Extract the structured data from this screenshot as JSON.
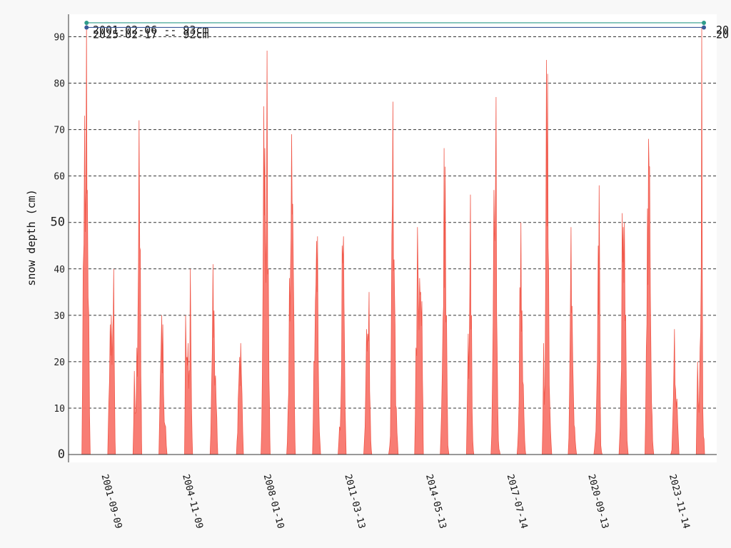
{
  "chart_data": {
    "type": "area",
    "title": "",
    "xlabel": "",
    "ylabel": "snow depth (cm)",
    "x_range": [
      "2000-11-14",
      "2025-03-30"
    ],
    "ylim": [
      0,
      95
    ],
    "y_ticks": [
      {
        "value": 0,
        "label": "0",
        "big": true
      },
      {
        "value": 10,
        "label": "10"
      },
      {
        "value": 20,
        "label": "20"
      },
      {
        "value": 30,
        "label": "30"
      },
      {
        "value": 40,
        "label": "40"
      },
      {
        "value": 50,
        "label": "50",
        "big": true
      },
      {
        "value": 60,
        "label": "60"
      },
      {
        "value": 70,
        "label": "70"
      },
      {
        "value": 80,
        "label": "80"
      },
      {
        "value": 90,
        "label": "90"
      }
    ],
    "x_ticks": [
      "2001-09-09",
      "2004-11-09",
      "2008-01-10",
      "2011-03-13",
      "2014-05-13",
      "2017-07-14",
      "2020-09-13",
      "2023-11-14"
    ],
    "grid": true,
    "series": [
      {
        "color": "#f0584a",
        "fill": "#f8766d",
        "seasons": [
          {
            "start": "2000-12-01",
            "end": "2001-03-30",
            "peaks": [
              [
                "2000-12-20",
                40
              ],
              [
                "2001-01-10",
                73
              ],
              [
                "2001-02-06",
                93
              ],
              [
                "2001-02-18",
                57
              ],
              [
                "2001-03-10",
                30
              ]
            ]
          },
          {
            "start": "2001-12-05",
            "end": "2002-03-25",
            "peaks": [
              [
                "2001-12-20",
                11
              ],
              [
                "2002-01-10",
                28
              ],
              [
                "2002-01-25",
                30
              ],
              [
                "2002-02-15",
                27
              ],
              [
                "2002-03-01",
                40
              ],
              [
                "2002-03-15",
                10
              ]
            ]
          },
          {
            "start": "2002-12-01",
            "end": "2003-04-05",
            "peaks": [
              [
                "2002-12-20",
                18
              ],
              [
                "2003-01-10",
                9
              ],
              [
                "2003-01-25",
                23
              ],
              [
                "2003-02-10",
                31
              ],
              [
                "2003-02-25",
                72
              ],
              [
                "2003-03-15",
                44
              ],
              [
                "2003-03-30",
                10
              ]
            ]
          },
          {
            "start": "2003-12-05",
            "end": "2004-03-30",
            "peaks": [
              [
                "2003-12-25",
                16
              ],
              [
                "2004-01-15",
                30
              ],
              [
                "2004-01-30",
                28
              ],
              [
                "2004-02-20",
                7
              ],
              [
                "2004-03-10",
                6
              ]
            ]
          },
          {
            "start": "2004-12-05",
            "end": "2005-03-30",
            "peaks": [
              [
                "2004-12-20",
                30
              ],
              [
                "2005-01-10",
                21
              ],
              [
                "2005-01-25",
                24
              ],
              [
                "2005-02-10",
                18
              ],
              [
                "2005-02-25",
                40
              ],
              [
                "2005-03-15",
                10
              ]
            ]
          },
          {
            "start": "2005-12-05",
            "end": "2006-03-25",
            "peaks": [
              [
                "2005-12-25",
                14
              ],
              [
                "2006-01-15",
                41
              ],
              [
                "2006-01-30",
                31
              ],
              [
                "2006-02-20",
                17
              ],
              [
                "2006-03-10",
                8
              ]
            ]
          },
          {
            "start": "2006-12-15",
            "end": "2007-03-25",
            "peaks": [
              [
                "2007-01-10",
                12
              ],
              [
                "2007-01-30",
                21
              ],
              [
                "2007-02-15",
                24
              ],
              [
                "2007-03-05",
                13
              ]
            ]
          },
          {
            "start": "2007-12-01",
            "end": "2008-04-10",
            "peaks": [
              [
                "2007-12-20",
                17
              ],
              [
                "2008-01-10",
                75
              ],
              [
                "2008-01-25",
                66
              ],
              [
                "2008-02-10",
                37
              ],
              [
                "2008-02-25",
                87
              ],
              [
                "2008-03-15",
                40
              ],
              [
                "2008-04-01",
                10
              ]
            ]
          },
          {
            "start": "2008-12-01",
            "end": "2009-04-05",
            "peaks": [
              [
                "2008-12-20",
                9
              ],
              [
                "2009-01-10",
                38
              ],
              [
                "2009-01-25",
                40
              ],
              [
                "2009-02-10",
                69
              ],
              [
                "2009-02-25",
                54
              ],
              [
                "2009-03-15",
                28
              ],
              [
                "2009-03-30",
                3
              ]
            ]
          },
          {
            "start": "2009-12-05",
            "end": "2010-03-30",
            "peaks": [
              [
                "2009-12-25",
                20
              ],
              [
                "2010-01-15",
                33
              ],
              [
                "2010-02-01",
                46
              ],
              [
                "2010-02-15",
                47
              ],
              [
                "2010-03-05",
                11
              ]
            ]
          },
          {
            "start": "2010-12-05",
            "end": "2011-03-30",
            "peaks": [
              [
                "2010-12-25",
                6
              ],
              [
                "2011-01-15",
                11
              ],
              [
                "2011-02-01",
                45
              ],
              [
                "2011-02-20",
                47
              ],
              [
                "2011-03-15",
                10
              ]
            ]
          },
          {
            "start": "2011-12-05",
            "end": "2012-03-30",
            "peaks": [
              [
                "2011-12-25",
                6
              ],
              [
                "2012-01-15",
                27
              ],
              [
                "2012-02-01",
                26
              ],
              [
                "2012-02-20",
                35
              ],
              [
                "2012-03-15",
                3
              ]
            ]
          },
          {
            "start": "2012-11-25",
            "end": "2013-04-10",
            "peaks": [
              [
                "2012-12-20",
                4
              ],
              [
                "2013-01-10",
                47
              ],
              [
                "2013-01-25",
                76
              ],
              [
                "2013-02-10",
                42
              ],
              [
                "2013-02-25",
                28
              ],
              [
                "2013-03-15",
                10
              ]
            ]
          },
          {
            "start": "2013-12-01",
            "end": "2014-04-05",
            "peaks": [
              [
                "2013-12-20",
                23
              ],
              [
                "2014-01-10",
                49
              ],
              [
                "2014-01-25",
                33
              ],
              [
                "2014-02-10",
                38
              ],
              [
                "2014-02-25",
                35
              ],
              [
                "2014-03-15",
                33
              ],
              [
                "2014-03-30",
                10
              ]
            ]
          },
          {
            "start": "2014-12-01",
            "end": "2015-04-05",
            "peaks": [
              [
                "2014-12-20",
                9
              ],
              [
                "2015-01-10",
                29
              ],
              [
                "2015-01-25",
                66
              ],
              [
                "2015-02-10",
                62
              ],
              [
                "2015-03-01",
                30
              ],
              [
                "2015-03-20",
                2
              ]
            ]
          },
          {
            "start": "2015-12-10",
            "end": "2016-03-25",
            "peaks": [
              [
                "2016-01-05",
                26
              ],
              [
                "2016-01-20",
                24
              ],
              [
                "2016-02-05",
                56
              ],
              [
                "2016-02-20",
                30
              ],
              [
                "2016-03-10",
                3
              ]
            ]
          },
          {
            "start": "2016-11-25",
            "end": "2017-04-05",
            "peaks": [
              [
                "2016-12-15",
                15
              ],
              [
                "2017-01-05",
                57
              ],
              [
                "2017-01-20",
                46
              ],
              [
                "2017-02-05",
                77
              ],
              [
                "2017-02-20",
                23
              ],
              [
                "2017-03-10",
                3
              ]
            ]
          },
          {
            "start": "2017-12-01",
            "end": "2018-04-05",
            "peaks": [
              [
                "2017-12-20",
                5
              ],
              [
                "2018-01-10",
                36
              ],
              [
                "2018-01-25",
                50
              ],
              [
                "2018-02-10",
                31
              ],
              [
                "2018-03-01",
                15
              ],
              [
                "2018-03-20",
                3
              ]
            ]
          },
          {
            "start": "2018-11-25",
            "end": "2019-04-10",
            "peaks": [
              [
                "2018-12-15",
                24
              ],
              [
                "2019-01-05",
                15
              ],
              [
                "2019-01-25",
                85
              ],
              [
                "2019-02-10",
                82
              ],
              [
                "2019-02-25",
                40
              ],
              [
                "2019-03-15",
                10
              ]
            ]
          },
          {
            "start": "2019-12-01",
            "end": "2020-03-30",
            "peaks": [
              [
                "2019-12-20",
                13
              ],
              [
                "2020-01-10",
                49
              ],
              [
                "2020-01-25",
                32
              ],
              [
                "2020-02-15",
                12
              ],
              [
                "2020-03-10",
                3
              ]
            ]
          },
          {
            "start": "2020-12-01",
            "end": "2021-03-30",
            "peaks": [
              [
                "2020-12-20",
                3
              ],
              [
                "2021-01-10",
                12
              ],
              [
                "2021-02-01",
                45
              ],
              [
                "2021-02-15",
                58
              ],
              [
                "2021-03-10",
                2
              ]
            ]
          },
          {
            "start": "2021-11-25",
            "end": "2022-04-05",
            "peaks": [
              [
                "2021-12-20",
                13
              ],
              [
                "2022-01-10",
                52
              ],
              [
                "2022-01-25",
                49
              ],
              [
                "2022-02-10",
                50
              ],
              [
                "2022-03-01",
                30
              ],
              [
                "2022-03-20",
                3
              ]
            ]
          },
          {
            "start": "2022-12-01",
            "end": "2023-04-05",
            "peaks": [
              [
                "2022-12-20",
                23
              ],
              [
                "2023-01-05",
                53
              ],
              [
                "2023-01-20",
                68
              ],
              [
                "2023-02-05",
                62
              ],
              [
                "2023-02-25",
                20
              ],
              [
                "2023-03-20",
                3
              ]
            ]
          },
          {
            "start": "2023-12-01",
            "end": "2024-03-30",
            "peaks": [
              [
                "2023-12-20",
                1
              ],
              [
                "2024-01-10",
                12
              ],
              [
                "2024-01-25",
                27
              ],
              [
                "2024-02-10",
                14
              ],
              [
                "2024-03-01",
                12
              ]
            ]
          },
          {
            "start": "2024-12-01",
            "end": "2025-03-30",
            "peaks": [
              [
                "2024-12-20",
                20
              ],
              [
                "2025-01-10",
                9
              ],
              [
                "2025-01-25",
                23
              ],
              [
                "2025-02-10",
                40
              ],
              [
                "2025-02-17",
                92
              ],
              [
                "2025-03-05",
                10
              ]
            ]
          }
        ]
      }
    ],
    "max_markers": [
      {
        "start": "2001-02-06",
        "end": "2025-03-20",
        "value": 93,
        "color": "#2e9c8a",
        "label": "2001-02-06 -- 93cm",
        "end_label": "20"
      },
      {
        "start": "2001-02-06",
        "end": "2025-03-20",
        "value": 92,
        "color": "#3a5a9a",
        "label": "2025-02-17 -- 92cm",
        "end_label": "20"
      }
    ]
  }
}
